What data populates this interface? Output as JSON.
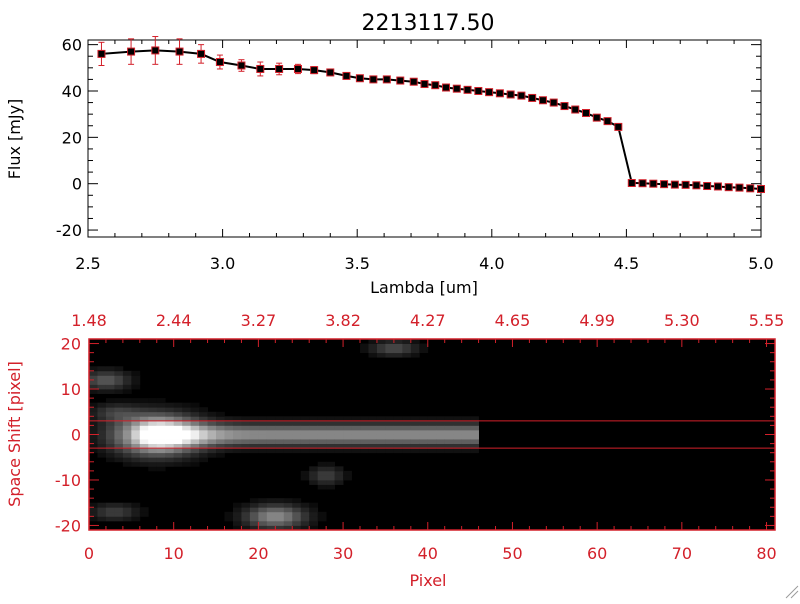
{
  "colors": {
    "axis_black": "#000000",
    "accent_red": "#d3202a",
    "background": "#ffffff",
    "image_background": "#000000",
    "trace_line": "#000000",
    "error_bars": "#d3202a"
  },
  "chart_data": [
    {
      "type": "line",
      "title": "2213117.50",
      "xlabel": "Lambda [um]",
      "ylabel": "Flux [mJy]",
      "xlim": [
        2.5,
        5.0
      ],
      "ylim": [
        -23,
        62
      ],
      "x_ticks": [
        2.5,
        3.0,
        3.5,
        4.0,
        4.5,
        5.0
      ],
      "x_tick_labels": [
        "2.5",
        "3.0",
        "3.5",
        "4.0",
        "4.5",
        "5.0"
      ],
      "y_ticks": [
        -20,
        0,
        20,
        40,
        60
      ],
      "y_tick_labels": [
        "-20",
        "0",
        "20",
        "40",
        "60"
      ],
      "grid": false,
      "series": [
        {
          "marker": "square",
          "x": [
            2.55,
            2.66,
            2.75,
            2.84,
            2.92,
            2.99,
            3.07,
            3.14,
            3.21,
            3.28,
            3.34,
            3.4,
            3.46,
            3.51,
            3.56,
            3.61,
            3.66,
            3.71,
            3.75,
            3.79,
            3.83,
            3.87,
            3.91,
            3.95,
            3.99,
            4.03,
            4.07,
            4.11,
            4.15,
            4.19,
            4.23,
            4.27,
            4.31,
            4.35,
            4.39,
            4.43,
            4.47,
            4.52,
            4.56,
            4.6,
            4.64,
            4.68,
            4.72,
            4.76,
            4.8,
            4.84,
            4.88,
            4.92,
            4.96,
            5.0
          ],
          "y": [
            56,
            57,
            57.5,
            57,
            56,
            52.5,
            51,
            49.5,
            49.5,
            49.5,
            49,
            48,
            46.5,
            45.5,
            45,
            45,
            44.5,
            44,
            43,
            42.5,
            41.5,
            41,
            40.5,
            40,
            39.5,
            39,
            38.5,
            38,
            37,
            36,
            35,
            33.5,
            32,
            30.5,
            28.5,
            27,
            24.5,
            0.3,
            0.2,
            0.0,
            -0.2,
            -0.4,
            -0.5,
            -0.7,
            -1.0,
            -1.2,
            -1.5,
            -1.7,
            -2.0,
            -2.3
          ],
          "yerr": [
            5,
            5.5,
            6,
            5.5,
            4,
            3,
            2.5,
            3,
            2.5,
            2,
            1.5,
            1.2,
            1,
            1,
            1,
            1,
            1,
            1,
            1,
            1,
            1,
            1,
            1,
            1,
            1,
            1,
            1,
            1,
            1,
            1,
            1,
            1,
            1,
            1,
            1,
            1,
            1,
            1,
            1,
            1,
            1,
            1,
            1,
            1,
            1,
            1,
            1,
            1,
            1,
            1
          ]
        }
      ]
    },
    {
      "type": "heatmap",
      "xlabel": "Pixel",
      "ylabel": "Space Shift [pixel]",
      "xlim": [
        0,
        81
      ],
      "ylim": [
        -21,
        21
      ],
      "x_ticks": [
        0,
        10,
        20,
        30,
        40,
        50,
        60,
        70,
        80
      ],
      "x_tick_labels": [
        "0",
        "10",
        "20",
        "30",
        "40",
        "50",
        "60",
        "70",
        "80"
      ],
      "y_ticks": [
        -20,
        -10,
        0,
        10,
        20
      ],
      "y_tick_labels": [
        "-20",
        "-10",
        "0",
        "10",
        "20"
      ],
      "top_axis_labels": [
        "1.48",
        "2.44",
        "3.27",
        "3.82",
        "4.27",
        "4.65",
        "4.99",
        "5.30",
        "5.55"
      ],
      "extraction_aperture": [
        -3,
        3
      ],
      "trace_center": 0,
      "trace_pixel_range": [
        5,
        46
      ],
      "features": [
        {
          "x": 8,
          "y": 0,
          "amplitude": 0.95,
          "sigma_x": 3.5,
          "sigma_y": 3
        },
        {
          "x": 22,
          "y": -18,
          "amplitude": 0.55,
          "sigma_x": 2.5,
          "sigma_y": 1.8
        },
        {
          "x": 2,
          "y": 12,
          "amplitude": 0.35,
          "sigma_x": 2,
          "sigma_y": 1.5
        },
        {
          "x": 36,
          "y": 19,
          "amplitude": 0.3,
          "sigma_x": 2,
          "sigma_y": 1.2
        },
        {
          "x": 28,
          "y": -9,
          "amplitude": 0.25,
          "sigma_x": 1.5,
          "sigma_y": 1.5
        },
        {
          "x": 3,
          "y": -17,
          "amplitude": 0.25,
          "sigma_x": 2,
          "sigma_y": 1.3
        },
        {
          "x": 3,
          "y": 5,
          "amplitude": 0.2,
          "sigma_x": 2,
          "sigma_y": 1.3
        }
      ]
    }
  ]
}
